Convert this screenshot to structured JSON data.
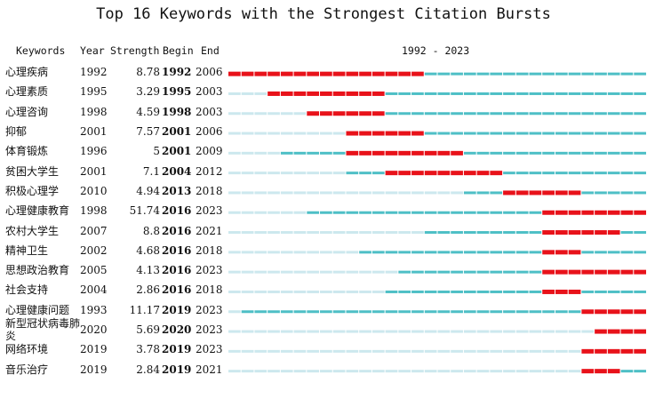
{
  "title": "Top 16 Keywords with the Strongest Citation Bursts",
  "headers": {
    "keywords": "Keywords",
    "year": "Year",
    "strength": "Strength",
    "begin": "Begin",
    "end": "End",
    "range": "1992 - 2023"
  },
  "colors": {
    "burst": "#e8121a",
    "active": "#4ebfc6",
    "inactive": "#cce8ee"
  },
  "chart_data": {
    "type": "table",
    "timeline": {
      "start": 1992,
      "end": 2023
    },
    "rows": [
      {
        "keyword": "心理疾病",
        "year": 1992,
        "strength": "8.78",
        "begin": 1992,
        "end": 2006
      },
      {
        "keyword": "心理素质",
        "year": 1995,
        "strength": "3.29",
        "begin": 1995,
        "end": 2003
      },
      {
        "keyword": "心理咨询",
        "year": 1998,
        "strength": "4.59",
        "begin": 1998,
        "end": 2003
      },
      {
        "keyword": "抑郁",
        "year": 2001,
        "strength": "7.57",
        "begin": 2001,
        "end": 2006
      },
      {
        "keyword": "体育锻炼",
        "year": 1996,
        "strength": "5",
        "begin": 2001,
        "end": 2009
      },
      {
        "keyword": "贫困大学生",
        "year": 2001,
        "strength": "7.1",
        "begin": 2004,
        "end": 2012
      },
      {
        "keyword": "积极心理学",
        "year": 2010,
        "strength": "4.94",
        "begin": 2013,
        "end": 2018
      },
      {
        "keyword": "心理健康教育",
        "year": 1998,
        "strength": "51.74",
        "begin": 2016,
        "end": 2023
      },
      {
        "keyword": "农村大学生",
        "year": 2007,
        "strength": "8.8",
        "begin": 2016,
        "end": 2021
      },
      {
        "keyword": "精神卫生",
        "year": 2002,
        "strength": "4.68",
        "begin": 2016,
        "end": 2018
      },
      {
        "keyword": "思想政治教育",
        "year": 2005,
        "strength": "4.13",
        "begin": 2016,
        "end": 2023
      },
      {
        "keyword": "社会支持",
        "year": 2004,
        "strength": "2.86",
        "begin": 2016,
        "end": 2018
      },
      {
        "keyword": "心理健康问题",
        "year": 1993,
        "strength": "11.17",
        "begin": 2019,
        "end": 2023
      },
      {
        "keyword": "新型冠状病毒肺炎",
        "year": 2020,
        "strength": "5.69",
        "begin": 2020,
        "end": 2023
      },
      {
        "keyword": "网络环境",
        "year": 2019,
        "strength": "3.78",
        "begin": 2019,
        "end": 2023
      },
      {
        "keyword": "音乐治疗",
        "year": 2019,
        "strength": "2.84",
        "begin": 2019,
        "end": 2021
      }
    ]
  }
}
